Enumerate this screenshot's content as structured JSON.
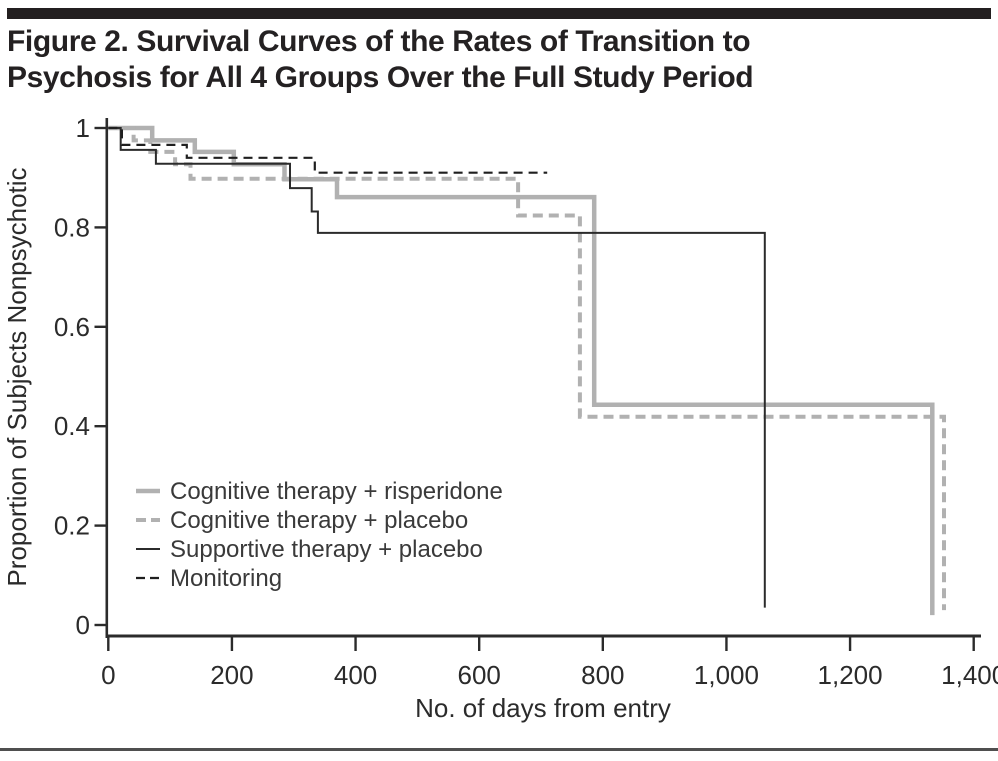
{
  "header": {
    "bar_color": "#231f20",
    "title_line1": "Figure 2. Survival Curves of the Rates of Transition to",
    "title_line2": "Psychosis for All 4 Groups Over the Full Study Period"
  },
  "chart_data": {
    "type": "line",
    "subtype": "kaplan-meier-survival-step",
    "title": "Survival Curves of the Rates of Transition to Psychosis for All 4 Groups Over the Full Study Period",
    "xlabel": "No. of days from entry",
    "ylabel": "Proportion of Subjects Nonpsychotic",
    "xlim": [
      0,
      1400
    ],
    "ylim": [
      0,
      1
    ],
    "x_ticks": [
      0,
      200,
      400,
      600,
      800,
      1000,
      1200,
      1400
    ],
    "x_tick_labels": [
      "0",
      "200",
      "400",
      "600",
      "800",
      "1,000",
      "1,200",
      "1,400"
    ],
    "y_ticks": [
      1,
      0.8,
      0.6,
      0.4,
      0.2,
      0
    ],
    "y_tick_labels": [
      "1",
      "0.8",
      "0.6",
      "0.4",
      "0.2",
      "0"
    ],
    "grid": false,
    "legend_position": "inside-lower-left",
    "axis_color": "#2b2b2b",
    "series": [
      {
        "name": "Cognitive therapy + risperidone",
        "color": "#b1b1b1",
        "line_style": "solid",
        "line_width": 4.5,
        "points": [
          [
            0,
            1
          ],
          [
            71,
            1
          ],
          [
            71,
            0.975
          ],
          [
            140,
            0.975
          ],
          [
            140,
            0.952
          ],
          [
            203,
            0.952
          ],
          [
            203,
            0.927
          ],
          [
            285,
            0.927
          ],
          [
            285,
            0.897
          ],
          [
            370,
            0.897
          ],
          [
            370,
            0.861
          ],
          [
            786,
            0.861
          ],
          [
            786,
            0.443
          ],
          [
            1333,
            0.443
          ],
          [
            1333,
            0.02
          ]
        ]
      },
      {
        "name": "Cognitive therapy + placebo",
        "color": "#b1b1b1",
        "line_style": "dashed",
        "line_width": 4,
        "points": [
          [
            0,
            1
          ],
          [
            41,
            1
          ],
          [
            41,
            0.975
          ],
          [
            68,
            0.975
          ],
          [
            68,
            0.952
          ],
          [
            108,
            0.952
          ],
          [
            108,
            0.927
          ],
          [
            133,
            0.927
          ],
          [
            133,
            0.898
          ],
          [
            663,
            0.898
          ],
          [
            663,
            0.824
          ],
          [
            763,
            0.824
          ],
          [
            763,
            0.419
          ],
          [
            1352,
            0.419
          ],
          [
            1352,
            0.03
          ]
        ]
      },
      {
        "name": "Supportive therapy + placebo",
        "color": "#2b2b2b",
        "line_style": "solid",
        "line_width": 2,
        "points": [
          [
            0,
            1
          ],
          [
            20,
            1
          ],
          [
            20,
            0.956
          ],
          [
            77,
            0.956
          ],
          [
            77,
            0.928
          ],
          [
            294,
            0.928
          ],
          [
            294,
            0.879
          ],
          [
            329,
            0.879
          ],
          [
            329,
            0.832
          ],
          [
            339,
            0.832
          ],
          [
            339,
            0.789
          ],
          [
            1062,
            0.789
          ],
          [
            1062,
            0.035
          ]
        ]
      },
      {
        "name": "Monitoring",
        "color": "#1f1f1f",
        "line_style": "dashed",
        "line_width": 2.2,
        "points": [
          [
            0,
            1
          ],
          [
            22,
            1
          ],
          [
            22,
            0.966
          ],
          [
            127,
            0.966
          ],
          [
            127,
            0.94
          ],
          [
            334,
            0.94
          ],
          [
            334,
            0.91
          ],
          [
            710,
            0.91
          ]
        ]
      }
    ]
  },
  "footer": {
    "rule_color": "#4f4f4f"
  }
}
